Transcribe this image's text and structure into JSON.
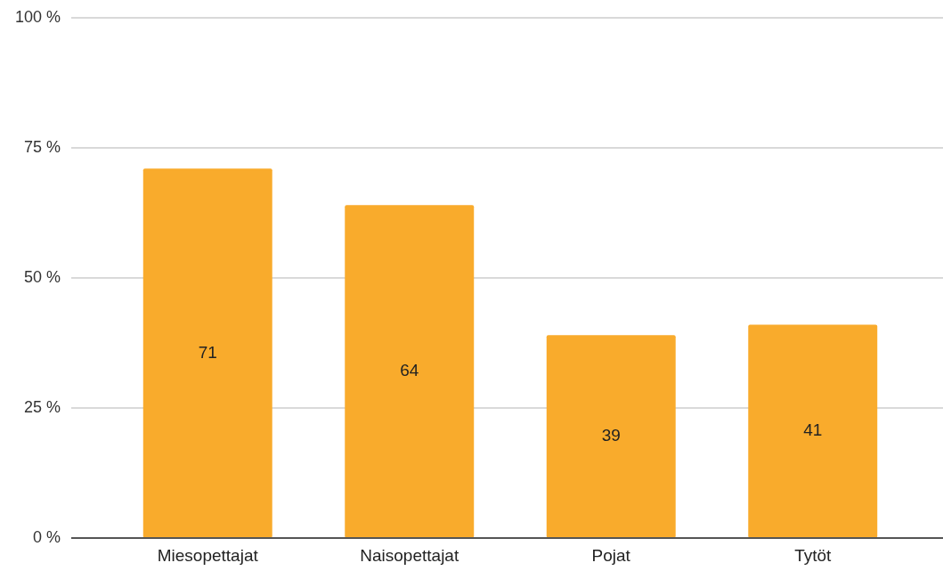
{
  "chart_data": {
    "type": "bar",
    "categories": [
      "Miesopettajat",
      "Naisopettajat",
      "Pojat",
      "Tytöt"
    ],
    "values": [
      71,
      64,
      39,
      41
    ],
    "color": "#f9ab2c",
    "data_labels": true,
    "ylim": [
      0,
      100
    ],
    "yticks": [
      {
        "value": 0,
        "label": "0 %"
      },
      {
        "value": 25,
        "label": "25 %"
      },
      {
        "value": 50,
        "label": "50 %"
      },
      {
        "value": 75,
        "label": "75 %"
      },
      {
        "value": 100,
        "label": "100 %"
      }
    ],
    "grid": "y"
  }
}
